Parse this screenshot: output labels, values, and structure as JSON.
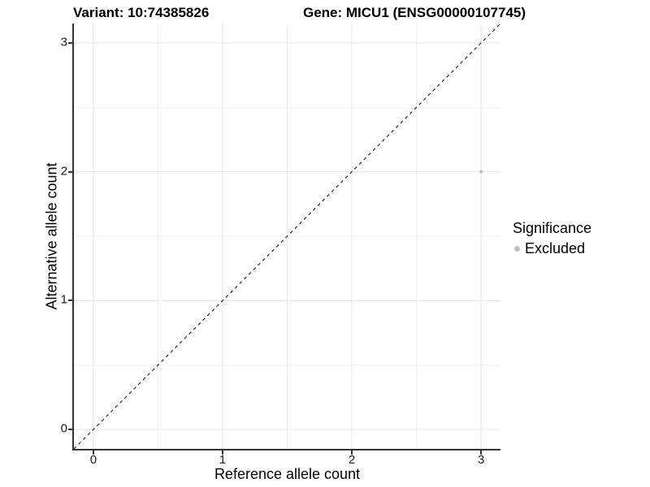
{
  "chart_data": {
    "type": "scatter",
    "title_left": "Variant: 10:74385826",
    "title_right": "Gene: MICU1 (ENSG00000107745)",
    "xlabel": "Reference allele count",
    "ylabel": "Alternative allele count",
    "xlim": [
      -0.15,
      3.15
    ],
    "ylim": [
      -0.15,
      3.15
    ],
    "x_ticks": [
      0,
      1,
      2,
      3
    ],
    "y_ticks": [
      0,
      1,
      2,
      3
    ],
    "x_minor_ticks": [
      0.5,
      1.5,
      2.5
    ],
    "y_minor_ticks": [
      0.5,
      1.5,
      2.5
    ],
    "grid": "on",
    "legend_position": "right",
    "identity_line": {
      "style": "dashed",
      "from": [
        -0.15,
        -0.15
      ],
      "to": [
        3.15,
        3.15
      ]
    },
    "series": [
      {
        "name": "Excluded",
        "points": [
          {
            "x": 3,
            "y": 2
          }
        ]
      }
    ],
    "legend": {
      "title": "Significance",
      "items": [
        {
          "label": "Excluded"
        }
      ]
    }
  },
  "colors": {
    "background": "#ffffff",
    "major_grid": "#e5e5e5",
    "minor_grid": "#efefef",
    "axis_line": "#333333",
    "tick_mark": "#333333",
    "tick_text": "#1a1a1a",
    "title_text": "#000000",
    "identity_line": "#000000",
    "excluded_point": "#bebebe"
  }
}
